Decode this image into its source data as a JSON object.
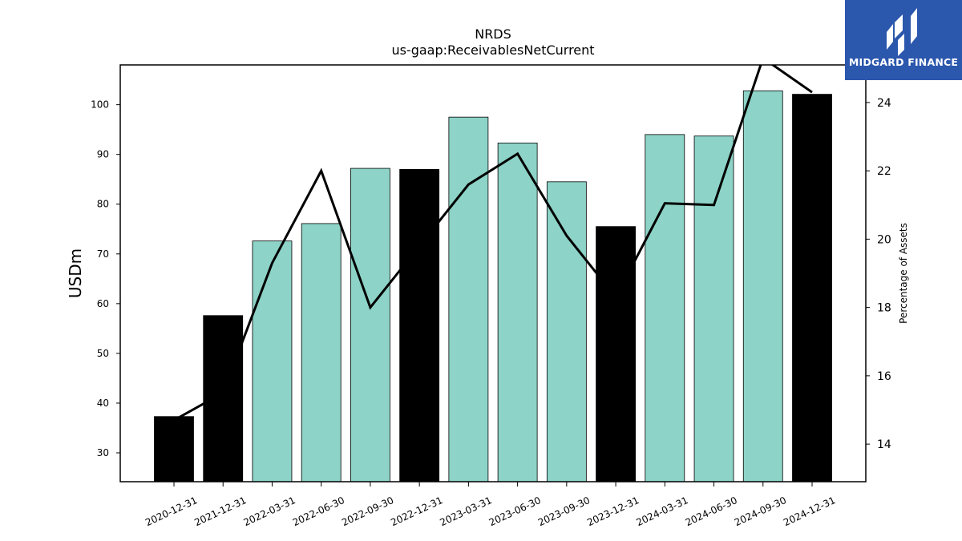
{
  "brand": {
    "name": "MIDGARD FINANCE",
    "color": "#2b57ad"
  },
  "chart_data": {
    "type": "bar",
    "title": "NRDS",
    "subtitle": "us-gaap:ReceivablesNetCurrent",
    "ylabel": "USDm",
    "ylabel_right": "Percentage of Assets",
    "categories": [
      "2020-12-31",
      "2021-12-31",
      "2022-03-31",
      "2022-06-30",
      "2022-09-30",
      "2022-12-31",
      "2023-03-31",
      "2023-06-30",
      "2023-09-30",
      "2023-12-31",
      "2024-03-31",
      "2024-06-30",
      "2024-09-30",
      "2024-12-31"
    ],
    "series": [
      {
        "type": "bar",
        "axis": "left",
        "values": [
          37.3,
          57.6,
          72.6,
          76.1,
          87.2,
          87.0,
          97.5,
          92.3,
          84.5,
          75.5,
          94.0,
          93.7,
          102.8,
          102.1
        ],
        "colors": [
          "#000000",
          "#000000",
          "#8dd3c7",
          "#8dd3c7",
          "#8dd3c7",
          "#000000",
          "#8dd3c7",
          "#8dd3c7",
          "#8dd3c7",
          "#000000",
          "#8dd3c7",
          "#8dd3c7",
          "#8dd3c7",
          "#000000"
        ]
      },
      {
        "type": "line",
        "axis": "right",
        "color": "#000000",
        "values": [
          14.7,
          15.5,
          19.3,
          22.0,
          18.0,
          19.8,
          21.6,
          22.5,
          20.1,
          18.3,
          21.05,
          21.0,
          25.3,
          24.3
        ]
      }
    ],
    "ylim": [
      24.2,
      108
    ],
    "ylim_right": [
      12.9,
      25.1
    ],
    "yticks": [
      30,
      40,
      50,
      60,
      70,
      80,
      90,
      100
    ],
    "yticks_right": [
      14,
      16,
      18,
      20,
      22,
      24
    ],
    "grid": false
  }
}
